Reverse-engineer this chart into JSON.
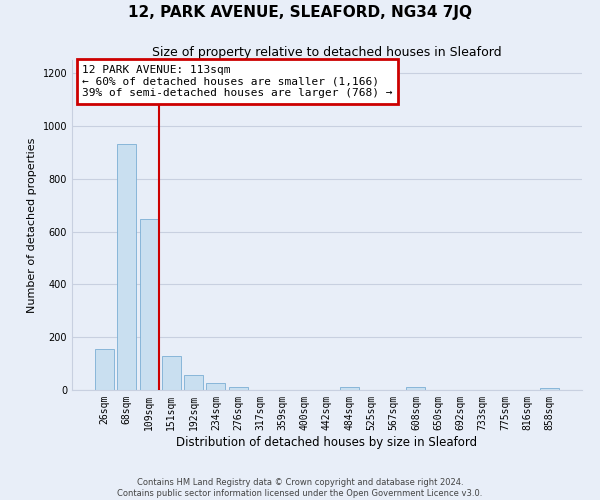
{
  "title": "12, PARK AVENUE, SLEAFORD, NG34 7JQ",
  "subtitle": "Size of property relative to detached houses in Sleaford",
  "xlabel": "Distribution of detached houses by size in Sleaford",
  "ylabel": "Number of detached properties",
  "bar_labels": [
    "26sqm",
    "68sqm",
    "109sqm",
    "151sqm",
    "192sqm",
    "234sqm",
    "276sqm",
    "317sqm",
    "359sqm",
    "400sqm",
    "442sqm",
    "484sqm",
    "525sqm",
    "567sqm",
    "608sqm",
    "650sqm",
    "692sqm",
    "733sqm",
    "775sqm",
    "816sqm",
    "858sqm"
  ],
  "bar_values": [
    155,
    930,
    648,
    128,
    58,
    28,
    12,
    0,
    0,
    0,
    0,
    10,
    0,
    0,
    10,
    0,
    0,
    0,
    0,
    0,
    8
  ],
  "bar_color": "#c9dff0",
  "bar_edge_color": "#7bafd4",
  "property_line_label": "12 PARK AVENUE: 113sqm",
  "annotation_line1": "← 60% of detached houses are smaller (1,166)",
  "annotation_line2": "39% of semi-detached houses are larger (768) →",
  "annotation_box_color": "#ffffff",
  "annotation_box_edge": "#cc0000",
  "vline_color": "#cc0000",
  "ylim": [
    0,
    1250
  ],
  "yticks": [
    0,
    200,
    400,
    600,
    800,
    1000,
    1200
  ],
  "footer1": "Contains HM Land Registry data © Crown copyright and database right 2024.",
  "footer2": "Contains public sector information licensed under the Open Government Licence v3.0.",
  "bg_color": "#e8eef8",
  "plot_bg_color": "#e8eef8",
  "grid_color": "#c8d0e0"
}
